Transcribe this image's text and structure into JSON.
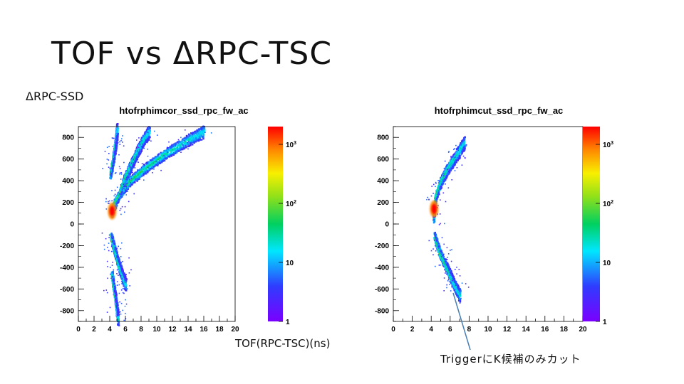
{
  "slide": {
    "title": "TOF vs ΔRPC-TSC",
    "y_label": "ΔRPC-SSD",
    "x_label": "TOF(RPC-TSC)(ns)",
    "annotation": "TriggerにK候補のみカット"
  },
  "chart_data": [
    {
      "type": "heatmap",
      "title": "htofrphimcor_ssd_rpc_fw_ac",
      "xlim": [
        0,
        20
      ],
      "ylim": [
        -900,
        900
      ],
      "x_ticks": [
        0,
        2,
        4,
        6,
        8,
        10,
        12,
        14,
        16,
        18,
        20
      ],
      "y_ticks": [
        800,
        600,
        400,
        200,
        0,
        -200,
        -400,
        -600,
        -800
      ],
      "z_scale": "log",
      "z_range": [
        1,
        2000
      ],
      "z_ticks": [
        "10^3",
        "10^2",
        "10",
        "1"
      ],
      "bands": [
        {
          "name": "upper-left",
          "points": [
            [
              4.0,
              450
            ],
            [
              4.4,
              600
            ],
            [
              4.7,
              750
            ],
            [
              4.9,
              880
            ]
          ]
        },
        {
          "name": "upper-main",
          "points": [
            [
              4.2,
              100
            ],
            [
              5.0,
              260
            ],
            [
              6.5,
              400
            ],
            [
              8.5,
              520
            ],
            [
              11,
              650
            ],
            [
              14,
              780
            ],
            [
              16,
              860
            ]
          ]
        },
        {
          "name": "upper-mid",
          "points": [
            [
              4.3,
              160
            ],
            [
              5.2,
              280
            ],
            [
              6.0,
              450
            ],
            [
              7.0,
              600
            ],
            [
              8.0,
              750
            ],
            [
              9.0,
              860
            ]
          ]
        },
        {
          "name": "lower-right",
          "points": [
            [
              4.1,
              -100
            ],
            [
              4.5,
              -220
            ],
            [
              5.0,
              -350
            ],
            [
              5.5,
              -460
            ],
            [
              6.0,
              -560
            ]
          ]
        },
        {
          "name": "lower-left",
          "points": [
            [
              4.2,
              -450
            ],
            [
              4.5,
              -600
            ],
            [
              4.8,
              -750
            ],
            [
              5.0,
              -880
            ]
          ]
        }
      ],
      "hotspot": [
        4.3,
        120
      ]
    },
    {
      "type": "heatmap",
      "title": "htofrphimcut_ssd_rpc_fw_ac",
      "xlim": [
        0,
        20
      ],
      "ylim": [
        -900,
        900
      ],
      "x_ticks": [
        0,
        2,
        4,
        6,
        8,
        10,
        12,
        14,
        16,
        18,
        20
      ],
      "y_ticks": [
        800,
        600,
        400,
        200,
        0,
        -200,
        -400,
        -600,
        -800
      ],
      "z_scale": "log",
      "z_range": [
        1,
        2000
      ],
      "z_ticks": [
        "10^3",
        "10^2",
        "10",
        "1"
      ],
      "bands": [
        {
          "name": "upper-arc",
          "points": [
            [
              4.2,
              50
            ],
            [
              4.4,
              250
            ],
            [
              5.0,
              400
            ],
            [
              5.8,
              530
            ],
            [
              6.5,
              620
            ],
            [
              7.5,
              760
            ]
          ]
        },
        {
          "name": "lower-arc",
          "points": [
            [
              4.3,
              -100
            ],
            [
              4.8,
              -250
            ],
            [
              5.5,
              -380
            ],
            [
              6.2,
              -520
            ],
            [
              7.0,
              -660
            ]
          ]
        }
      ],
      "hotspot": [
        4.3,
        140
      ]
    }
  ]
}
